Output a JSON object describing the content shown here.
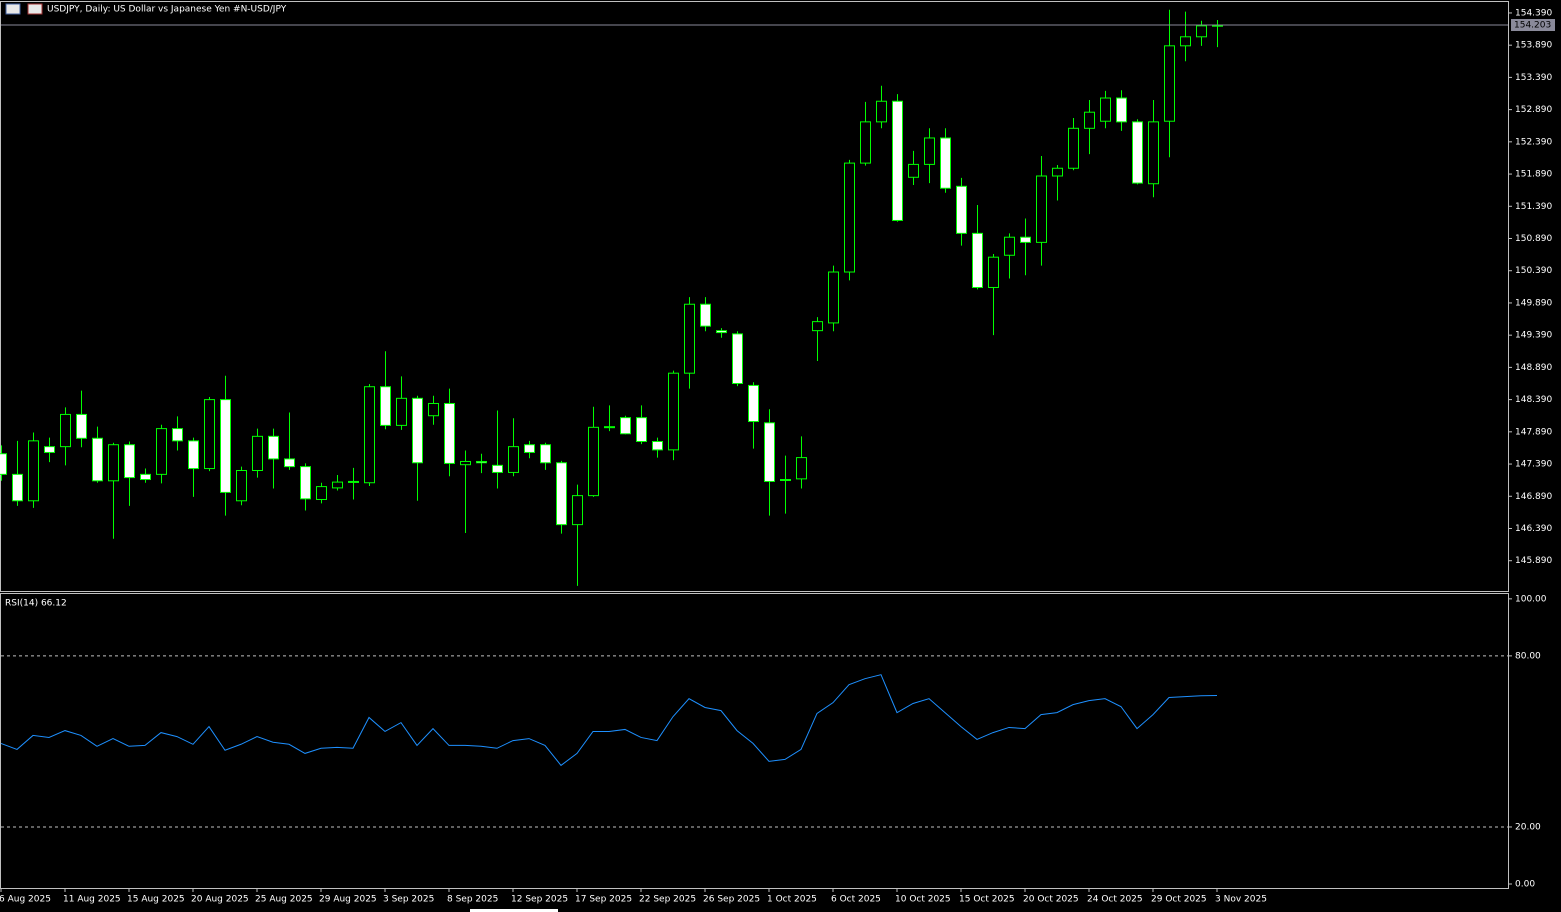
{
  "chart_data": [
    {
      "type": "candlestick",
      "title": "USDJPY, Daily:  US Dollar vs  Japanese Yen #N-USD/JPY",
      "categories": [
        "6 Aug 2025",
        null,
        null,
        null,
        "11 Aug 2025",
        null,
        null,
        null,
        "15 Aug 2025",
        null,
        null,
        null,
        "20 Aug 2025",
        null,
        null,
        null,
        "25 Aug 2025",
        null,
        null,
        null,
        "29 Aug 2025",
        null,
        null,
        null,
        "3 Sep 2025",
        null,
        null,
        null,
        "8 Sep 2025",
        null,
        null,
        null,
        "12 Sep 2025",
        null,
        null,
        null,
        "17 Sep 2025",
        null,
        null,
        null,
        "22 Sep 2025",
        null,
        null,
        null,
        "26 Sep 2025",
        null,
        null,
        null,
        "1 Oct 2025",
        null,
        null,
        null,
        "6 Oct 2025",
        null,
        null,
        null,
        "10 Oct 2025",
        null,
        null,
        null,
        "15 Oct 2025",
        null,
        null,
        null,
        "20 Oct 2025",
        null,
        null,
        null,
        "24 Oct 2025",
        null,
        null,
        null,
        "29 Oct 2025",
        null,
        null,
        null,
        "3 Nov 2025"
      ],
      "open": [
        147.55,
        147.23,
        146.82,
        147.66,
        147.66,
        148.16,
        147.79,
        147.13,
        147.69,
        147.23,
        147.23,
        147.94,
        147.75,
        147.32,
        148.39,
        146.82,
        147.29,
        147.82,
        147.47,
        147.35,
        146.84,
        147.02,
        147.11,
        147.1,
        148.59,
        147.99,
        148.41,
        148.14,
        148.33,
        147.38,
        147.43,
        147.37,
        147.26,
        147.69,
        147.69,
        147.41,
        146.45,
        146.9,
        147.96,
        148.11,
        148.11,
        147.74,
        147.61,
        148.8,
        149.87,
        149.46,
        149.41,
        148.61,
        148.03,
        147.14,
        147.16,
        149.46,
        149.58,
        150.37,
        152.06,
        152.7,
        153.02,
        151.84,
        152.04,
        152.45,
        151.7,
        150.97,
        150.13,
        150.63,
        150.91,
        150.83,
        151.86,
        151.98,
        152.6,
        152.71,
        153.07,
        152.7,
        151.74,
        152.71,
        153.88,
        154.02,
        154.19
      ],
      "high": [
        147.68,
        147.75,
        147.88,
        147.8,
        148.27,
        148.53,
        147.97,
        147.72,
        147.74,
        147.32,
        148.0,
        148.13,
        147.8,
        148.43,
        148.76,
        147.35,
        147.94,
        147.94,
        148.19,
        147.4,
        147.1,
        147.22,
        147.33,
        148.63,
        149.14,
        148.75,
        148.45,
        148.45,
        148.56,
        147.6,
        147.55,
        148.22,
        148.1,
        147.75,
        147.72,
        147.44,
        147.07,
        148.28,
        148.3,
        148.14,
        148.3,
        147.8,
        148.84,
        149.98,
        149.98,
        149.5,
        149.45,
        148.66,
        148.24,
        147.52,
        147.82,
        149.67,
        150.47,
        152.11,
        153.01,
        153.26,
        153.13,
        152.25,
        152.6,
        152.6,
        151.83,
        151.41,
        150.65,
        150.97,
        151.2,
        152.17,
        152.03,
        152.76,
        153.04,
        153.18,
        153.19,
        152.74,
        153.04,
        154.44,
        154.41,
        154.27,
        154.28
      ],
      "low": [
        147.13,
        146.74,
        146.71,
        147.42,
        147.37,
        147.65,
        147.1,
        146.23,
        146.74,
        147.1,
        147.09,
        147.6,
        146.88,
        147.28,
        146.59,
        146.75,
        147.18,
        147.01,
        147.3,
        146.67,
        146.78,
        146.98,
        146.84,
        147.05,
        147.93,
        147.92,
        146.82,
        148.0,
        147.2,
        146.32,
        147.25,
        147.01,
        147.2,
        147.48,
        147.3,
        146.31,
        145.5,
        146.88,
        147.9,
        147.85,
        147.7,
        147.49,
        147.45,
        148.56,
        149.45,
        149.35,
        148.6,
        147.63,
        146.59,
        146.62,
        147.01,
        148.99,
        149.45,
        150.24,
        152.02,
        152.6,
        151.15,
        151.72,
        151.75,
        151.6,
        150.78,
        150.1,
        149.39,
        150.27,
        150.32,
        150.47,
        151.48,
        151.95,
        152.2,
        152.6,
        152.56,
        151.73,
        151.53,
        152.15,
        153.64,
        153.88,
        153.86
      ],
      "close": [
        147.23,
        146.82,
        147.75,
        147.57,
        148.16,
        147.79,
        147.13,
        147.69,
        147.18,
        147.15,
        147.94,
        147.75,
        147.32,
        148.39,
        146.95,
        147.29,
        147.82,
        147.47,
        147.35,
        146.85,
        147.04,
        147.11,
        147.12,
        148.59,
        147.99,
        148.41,
        147.41,
        148.33,
        147.4,
        147.43,
        147.41,
        147.26,
        147.66,
        147.57,
        147.41,
        146.45,
        146.9,
        147.96,
        147.97,
        147.86,
        147.74,
        147.61,
        148.8,
        149.87,
        149.53,
        149.43,
        148.64,
        148.05,
        147.12,
        147.15,
        147.49,
        149.6,
        150.37,
        152.06,
        152.7,
        153.02,
        151.17,
        152.04,
        152.45,
        151.67,
        150.97,
        150.13,
        150.6,
        150.91,
        150.83,
        151.86,
        151.98,
        152.6,
        152.85,
        153.07,
        152.7,
        151.75,
        152.7,
        153.88,
        154.02,
        154.19,
        154.2
      ],
      "colors": {
        "outline": "#00ff00",
        "up": "#000000",
        "down": "#ffffff"
      },
      "ylim": [
        145.42,
        154.56
      ],
      "yticks": [
        {
          "value": 145.89,
          "label": "145.890"
        },
        {
          "value": 146.39,
          "label": "146.390"
        },
        {
          "value": 146.89,
          "label": "146.890"
        },
        {
          "value": 147.39,
          "label": "147.390"
        },
        {
          "value": 147.89,
          "label": "147.890"
        },
        {
          "value": 148.39,
          "label": "148.390"
        },
        {
          "value": 148.89,
          "label": "148.890"
        },
        {
          "value": 149.39,
          "label": "149.390"
        },
        {
          "value": 149.89,
          "label": "149.890"
        },
        {
          "value": 150.39,
          "label": "150.390"
        },
        {
          "value": 150.89,
          "label": "150.890"
        },
        {
          "value": 151.39,
          "label": "151.390"
        },
        {
          "value": 151.89,
          "label": "151.890"
        },
        {
          "value": 152.39,
          "label": "152.390"
        },
        {
          "value": 152.89,
          "label": "152.890"
        },
        {
          "value": 153.39,
          "label": "153.390"
        },
        {
          "value": 153.89,
          "label": "153.890"
        },
        {
          "value": 154.39,
          "label": "154.390"
        }
      ],
      "price_line": 154.203
    },
    {
      "type": "line",
      "title": "RSI(14) 66.12",
      "color": "#1e90ff",
      "values": [
        49.3,
        47.2,
        52.1,
        51.4,
        53.8,
        52.1,
        48.3,
        51.0,
        48.3,
        48.6,
        53.1,
        51.7,
        49.0,
        55.2,
        46.9,
        49.0,
        51.7,
        49.7,
        49.0,
        45.8,
        47.6,
        47.9,
        47.6,
        58.4,
        53.5,
        56.6,
        48.6,
        54.5,
        48.6,
        48.6,
        48.3,
        47.6,
        50.3,
        51.0,
        48.6,
        41.6,
        45.8,
        53.5,
        53.5,
        54.2,
        51.4,
        50.3,
        58.7,
        65.0,
        61.9,
        60.8,
        53.8,
        49.3,
        43.0,
        43.7,
        47.2,
        59.8,
        63.6,
        69.9,
        72.0,
        73.4,
        60.1,
        63.3,
        65.0,
        60.1,
        55.2,
        50.7,
        53.1,
        54.9,
        54.5,
        59.4,
        60.1,
        62.9,
        64.3,
        65.0,
        62.2,
        54.5,
        59.4,
        65.4,
        65.7,
        66.0,
        66.12
      ],
      "ylim": [
        -1.4,
        101.7
      ],
      "yticks": [
        {
          "value": 100,
          "label": "100.00"
        },
        {
          "value": 80,
          "label": "80.00"
        },
        {
          "value": 20,
          "label": "20.00"
        },
        {
          "value": 0,
          "label": "0.00"
        }
      ],
      "levels": [
        80,
        20
      ]
    }
  ]
}
